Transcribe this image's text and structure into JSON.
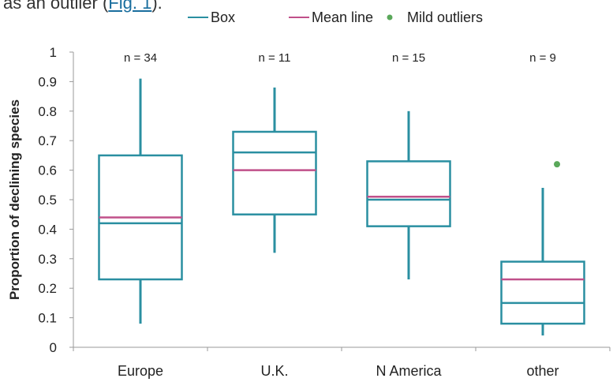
{
  "caption": {
    "prefix": "as an outlier (",
    "link": "Fig. 1",
    "suffix": ")."
  },
  "chart_data": {
    "type": "box",
    "ylabel": "Proportion of declining species",
    "xlabel": "",
    "ylim": [
      0,
      1
    ],
    "yticks": [
      0,
      0.1,
      0.2,
      0.3,
      0.4,
      0.5,
      0.6,
      0.7,
      0.8,
      0.9,
      1
    ],
    "ytick_labels": [
      "0",
      "0.1",
      "0.2",
      "0.3",
      "0.4",
      "0.5",
      "0.6",
      "0.7",
      "0.8",
      "0.9",
      "1"
    ],
    "grid": false,
    "legend": {
      "placement": "top",
      "entries": [
        {
          "label": "Box",
          "kind": "line",
          "color": "#2a8fa1"
        },
        {
          "label": "Mean line",
          "kind": "line",
          "color": "#c0508a"
        },
        {
          "label": "Mild outliers",
          "kind": "dot",
          "color": "#5aa85a"
        }
      ]
    },
    "colors": {
      "box": "#2a8fa1",
      "mean": "#c0508a",
      "outlier": "#5aa85a"
    },
    "categories": [
      "Europe",
      "U.K.",
      "N America",
      "other"
    ],
    "boxes": [
      {
        "category": "Europe",
        "n_label": "n = 34",
        "min": 0.08,
        "q1": 0.23,
        "median": 0.42,
        "mean": 0.44,
        "q3": 0.65,
        "max": 0.91,
        "outliers": []
      },
      {
        "category": "U.K.",
        "n_label": "n = 11",
        "min": 0.32,
        "q1": 0.45,
        "median": 0.66,
        "mean": 0.6,
        "q3": 0.73,
        "max": 0.88,
        "outliers": []
      },
      {
        "category": "N America",
        "n_label": "n = 15",
        "min": 0.23,
        "q1": 0.41,
        "median": 0.5,
        "mean": 0.51,
        "q3": 0.63,
        "max": 0.8,
        "outliers": []
      },
      {
        "category": "other",
        "n_label": "n = 9",
        "min": 0.04,
        "q1": 0.08,
        "median": 0.15,
        "mean": 0.23,
        "q3": 0.29,
        "max": 0.54,
        "outliers": [
          0.62
        ]
      }
    ]
  }
}
